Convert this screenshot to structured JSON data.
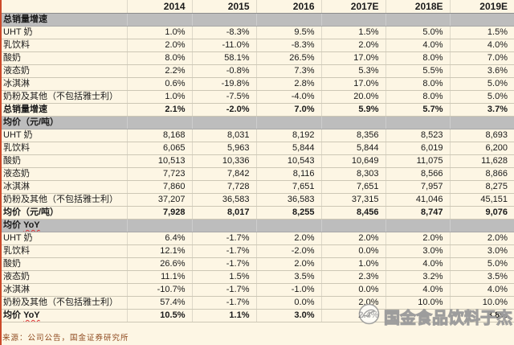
{
  "table": {
    "year_columns": [
      "2014",
      "2015",
      "2016",
      "2017E",
      "2018E",
      "2019E"
    ],
    "sections": [
      {
        "header": "总销量增速",
        "rows": [
          {
            "label": "UHT 奶",
            "values": [
              "1.0%",
              "-8.3%",
              "9.5%",
              "1.5%",
              "5.0%",
              "1.5%"
            ]
          },
          {
            "label": "乳饮料",
            "values": [
              "2.0%",
              "-11.0%",
              "-8.3%",
              "2.0%",
              "4.0%",
              "4.0%"
            ]
          },
          {
            "label": "酸奶",
            "values": [
              "8.0%",
              "58.1%",
              "26.5%",
              "17.0%",
              "8.0%",
              "7.0%"
            ]
          },
          {
            "label": "液态奶",
            "values": [
              "2.2%",
              "-0.8%",
              "7.3%",
              "5.3%",
              "5.5%",
              "3.6%"
            ]
          },
          {
            "label": "冰淇淋",
            "values": [
              "0.6%",
              "-19.8%",
              "2.8%",
              "17.0%",
              "8.0%",
              "5.0%"
            ]
          },
          {
            "label": "奶粉及其他（不包括雅士利）",
            "values": [
              "1.0%",
              "-7.5%",
              "-4.0%",
              "20.0%",
              "8.0%",
              "5.0%"
            ]
          }
        ],
        "total": {
          "label": "总销量增速",
          "values": [
            "2.1%",
            "-2.0%",
            "7.0%",
            "5.9%",
            "5.7%",
            "3.7%"
          ]
        }
      },
      {
        "header": "均价（元/吨）",
        "rows": [
          {
            "label": "UHT 奶",
            "values": [
              "8,168",
              "8,031",
              "8,192",
              "8,356",
              "8,523",
              "8,693"
            ]
          },
          {
            "label": "乳饮料",
            "values": [
              "6,065",
              "5,963",
              "5,844",
              "5,844",
              "6,019",
              "6,200"
            ]
          },
          {
            "label": "酸奶",
            "values": [
              "10,513",
              "10,336",
              "10,543",
              "10,649",
              "11,075",
              "11,628"
            ]
          },
          {
            "label": "液态奶",
            "values": [
              "7,723",
              "7,842",
              "8,116",
              "8,303",
              "8,566",
              "8,866"
            ]
          },
          {
            "label": "冰淇淋",
            "values": [
              "7,860",
              "7,728",
              "7,651",
              "7,651",
              "7,957",
              "8,275"
            ]
          },
          {
            "label": "奶粉及其他（不包括雅士利）",
            "values": [
              "37,207",
              "36,583",
              "36,583",
              "37,315",
              "41,046",
              "45,151"
            ]
          }
        ],
        "total": {
          "label": "均价（元/吨）",
          "values": [
            "7,928",
            "8,017",
            "8,255",
            "8,456",
            "8,747",
            "9,076"
          ]
        }
      },
      {
        "header": "均价 YoY",
        "rows": [
          {
            "label": "UHT 奶",
            "values": [
              "6.4%",
              "-1.7%",
              "2.0%",
              "2.0%",
              "2.0%",
              "2.0%"
            ]
          },
          {
            "label": "乳饮料",
            "values": [
              "12.1%",
              "-1.7%",
              "-2.0%",
              "0.0%",
              "3.0%",
              "3.0%"
            ]
          },
          {
            "label": "酸奶",
            "values": [
              "26.6%",
              "-1.7%",
              "2.0%",
              "1.0%",
              "4.0%",
              "5.0%"
            ]
          },
          {
            "label": "液态奶",
            "values": [
              "11.1%",
              "1.5%",
              "3.5%",
              "2.3%",
              "3.2%",
              "3.5%"
            ]
          },
          {
            "label": "冰淇淋",
            "values": [
              "-10.7%",
              "-1.7%",
              "-1.0%",
              "0.0%",
              "4.0%",
              "4.0%"
            ]
          },
          {
            "label": "奶粉及其他（不包括雅士利）",
            "values": [
              "57.4%",
              "-1.7%",
              "0.0%",
              "2.0%",
              "10.0%",
              "10.0%"
            ]
          }
        ],
        "total": {
          "label": "均价 YoY",
          "values": [
            "10.5%",
            "1.1%",
            "3.0%",
            "2.4%",
            "",
            "3.8%"
          ]
        }
      }
    ]
  },
  "source_note": "来源：公司公告，国金证券研究所",
  "watermark": {
    "text": "国金食品饮料于杰",
    "logo": "bird-emblem"
  },
  "colors": {
    "page_bg": "#fdf6e4",
    "section_row_bg": "#bdbdbd",
    "left_accent": "#cc4a2a",
    "squiggle_red": "#e03030",
    "source_text": "#8f4a1f"
  }
}
